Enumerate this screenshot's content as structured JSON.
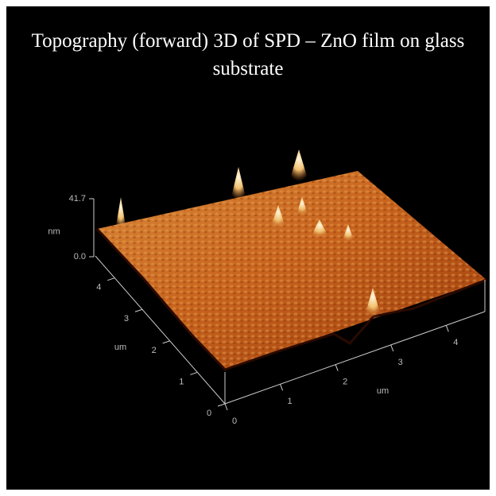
{
  "chart_data": {
    "type": "surface",
    "title": "Topography (forward) 3D of SPD – ZnO film on glass substrate",
    "xlabel": "um",
    "ylabel": "um",
    "zlabel": "nm",
    "xlim": [
      0,
      4.7
    ],
    "xticks": [
      0,
      1,
      2,
      3,
      4
    ],
    "ylim": [
      0,
      4.7
    ],
    "yticks": [
      0,
      1,
      2,
      3,
      4
    ],
    "zlim": [
      0,
      41.7
    ],
    "zticks": [
      {
        "value": 0,
        "label": "0.0"
      },
      41.7
    ],
    "color": "#c8641e"
  }
}
